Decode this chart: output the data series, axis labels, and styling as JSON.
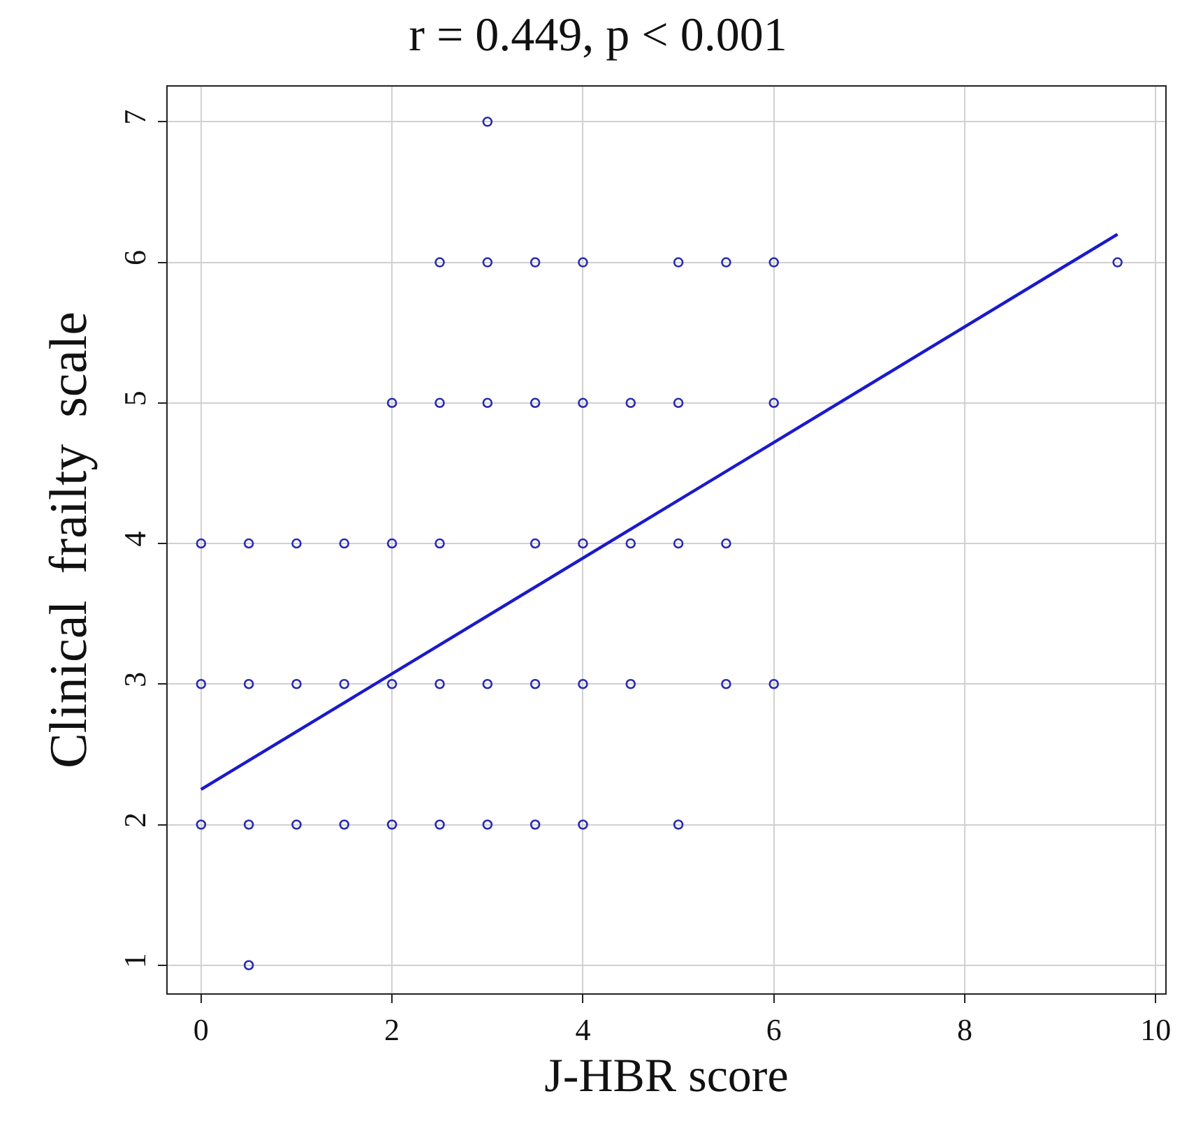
{
  "chart_data": {
    "type": "scatter",
    "title": "r = 0.449, p < 0.001",
    "xlabel": "J-HBR score",
    "ylabel": "Clinical  frailty  scale",
    "xlim": [
      -0.35,
      10.1
    ],
    "ylim": [
      0.8,
      7.25
    ],
    "xticks": [
      0,
      2,
      4,
      6,
      8,
      10
    ],
    "yticks": [
      1,
      2,
      3,
      4,
      5,
      6,
      7
    ],
    "grid": true,
    "series": [
      {
        "marker": "circle",
        "color": "#2a2ab0",
        "x": [
          3,
          2.5,
          3,
          3.5,
          4,
          5,
          5.5,
          6,
          9.6,
          2,
          2.5,
          3,
          3.5,
          4,
          4.5,
          5,
          6,
          0,
          0.5,
          1,
          1.5,
          2,
          2.5,
          3.5,
          4,
          4.5,
          5,
          5.5,
          0,
          0.5,
          1,
          1.5,
          2,
          2.5,
          3,
          3.5,
          4,
          4.5,
          5.5,
          6,
          0,
          0.5,
          1,
          1.5,
          2,
          2.5,
          3,
          3.5,
          4,
          5,
          0.5
        ],
        "values": [
          7,
          6,
          6,
          6,
          6,
          6,
          6,
          6,
          6,
          5,
          5,
          5,
          5,
          5,
          5,
          5,
          5,
          4,
          4,
          4,
          4,
          4,
          4,
          4,
          4,
          4,
          4,
          4,
          3,
          3,
          3,
          3,
          3,
          3,
          3,
          3,
          3,
          3,
          3,
          3,
          2,
          2,
          2,
          2,
          2,
          2,
          2,
          2,
          2,
          2,
          1
        ]
      },
      {
        "type": "line",
        "marker": "none",
        "line_style": "solid",
        "color": "#1a1acc",
        "x": [
          0,
          9.6
        ],
        "values": [
          2.25,
          6.2
        ]
      }
    ]
  }
}
